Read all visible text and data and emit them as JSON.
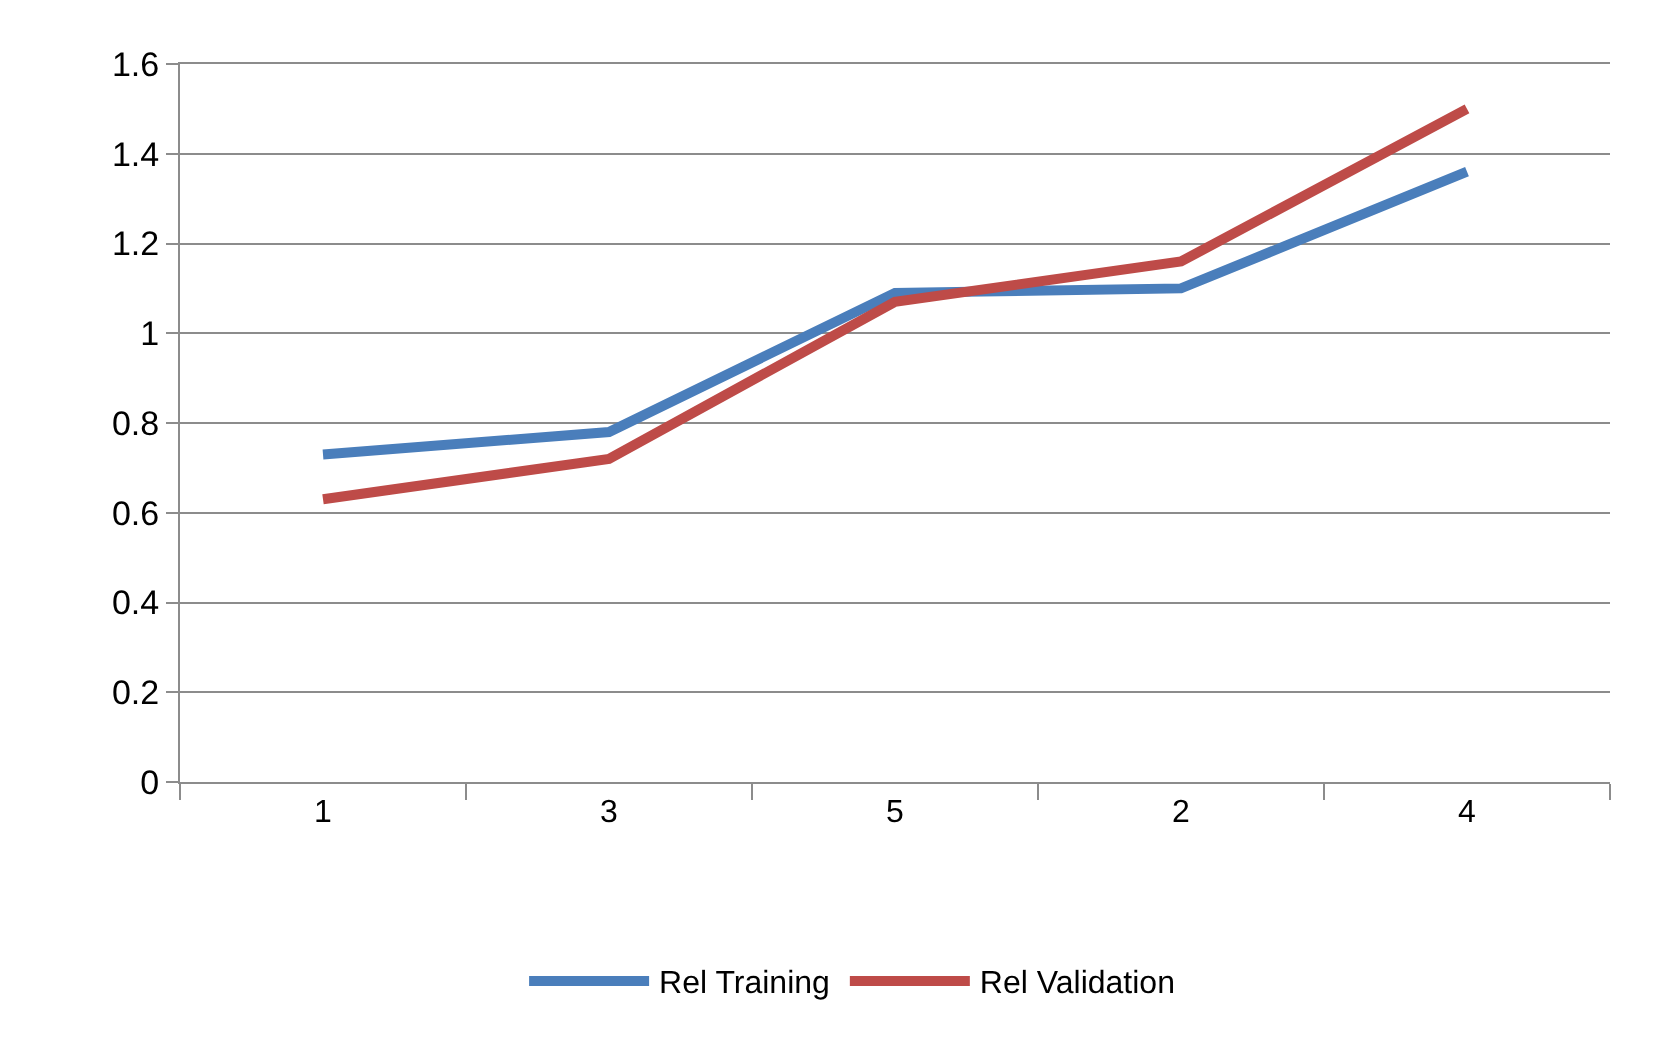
{
  "chart_data": {
    "type": "line",
    "categories": [
      "1",
      "3",
      "5",
      "2",
      "4"
    ],
    "series": [
      {
        "name": "Rel Training",
        "color": "#4a7ebb",
        "values": [
          0.73,
          0.78,
          1.09,
          1.1,
          1.36
        ]
      },
      {
        "name": "Rel Validation",
        "color": "#be4b48",
        "values": [
          0.63,
          0.72,
          1.07,
          1.16,
          1.5
        ]
      }
    ],
    "ylim": [
      0,
      1.6
    ],
    "yticks": [
      0,
      0.2,
      0.4,
      0.6,
      0.8,
      1,
      1.2,
      1.4,
      1.6
    ],
    "grid": "y",
    "legend": "bottom",
    "marker": "none",
    "line_style": "solid"
  }
}
